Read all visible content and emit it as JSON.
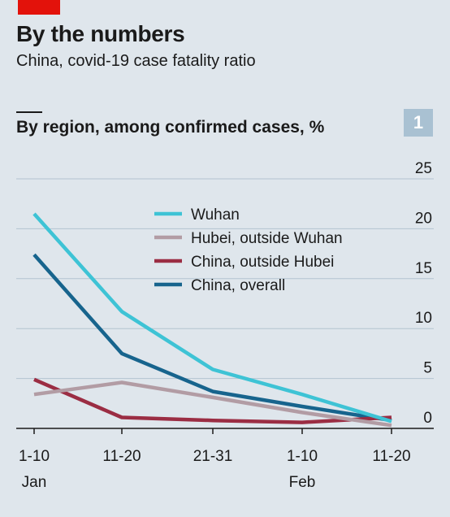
{
  "header": {
    "title": "By the numbers",
    "subtitle": "China, covid-19 case fatality ratio"
  },
  "chart_data": {
    "type": "line",
    "title": "By region, among confirmed cases, %",
    "panel_number": "1",
    "categories": [
      "1-10",
      "11-20",
      "21-31",
      "1-10",
      "11-20"
    ],
    "month_labels": [
      "Jan",
      "",
      "",
      "Feb",
      ""
    ],
    "ylim": [
      0,
      25
    ],
    "yticks": [
      0,
      5,
      10,
      15,
      20,
      25
    ],
    "grid": true,
    "legend_position": "top-center",
    "series": [
      {
        "name": "Wuhan",
        "color": "#3ec3d5",
        "values": [
          21.5,
          11.7,
          5.9,
          3.4,
          0.7
        ]
      },
      {
        "name": "Hubei, outside Wuhan",
        "color": "#b29ca4",
        "values": [
          3.4,
          4.6,
          3.1,
          1.6,
          0.3
        ]
      },
      {
        "name": "China, outside Hubei",
        "color": "#9b2d43",
        "values": [
          4.9,
          1.1,
          0.8,
          0.6,
          1.1
        ]
      },
      {
        "name": "China, overall",
        "color": "#17648d",
        "values": [
          17.4,
          7.5,
          3.7,
          2.2,
          0.8
        ]
      }
    ]
  }
}
